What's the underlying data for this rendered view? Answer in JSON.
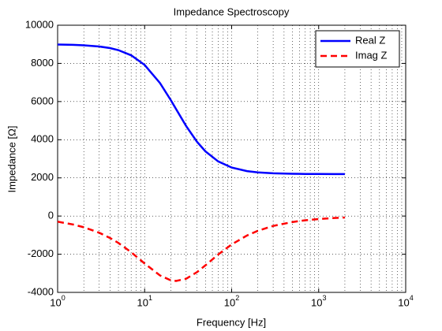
{
  "chart_data": {
    "type": "line",
    "title": "Impedance Spectroscopy",
    "x_label": "Frequency  [Hz]",
    "y_label": "Impedance  [Ω]",
    "x_scale": "log",
    "grid": true,
    "minor_grid": true,
    "legend_position": "northeast",
    "x": [
      1,
      1.5,
      2,
      3,
      4,
      5,
      7,
      10,
      15,
      20,
      23,
      30,
      40,
      50,
      70,
      100,
      150,
      200,
      300,
      500,
      700,
      1000,
      1500,
      2000
    ],
    "series": [
      {
        "name": "Real Z",
        "color": "#0000ff",
        "dash": "solid",
        "values": [
          8987,
          8971,
          8949,
          8886,
          8801,
          8693,
          8424,
          7919,
          6971,
          6072,
          5600,
          4718,
          3889,
          3388,
          2863,
          2542,
          2356,
          2289,
          2240,
          2214,
          2207,
          2204,
          2202,
          2201
        ]
      },
      {
        "name": "Imag Z",
        "color": "#ff0000",
        "dash": "dashed",
        "values": [
          -295,
          -441,
          -587,
          -872,
          -1148,
          -1412,
          -1894,
          -2487,
          -3111,
          -3368,
          -3400,
          -3284,
          -2938,
          -2582,
          -2017,
          -1486,
          -1019,
          -772,
          -518,
          -312,
          -223,
          -156,
          -104,
          -78
        ]
      }
    ],
    "xlim": [
      1,
      10000
    ],
    "xticks": [
      {
        "value": 1,
        "label": "10^0"
      },
      {
        "value": 10,
        "label": "10^1"
      },
      {
        "value": 100,
        "label": "10^2"
      },
      {
        "value": 1000,
        "label": "10^3"
      },
      {
        "value": 10000,
        "label": "10^4"
      }
    ],
    "ylim": [
      -4000,
      10000
    ],
    "yticks": [
      -4000,
      -2000,
      0,
      2000,
      4000,
      6000,
      8000,
      10000
    ]
  }
}
